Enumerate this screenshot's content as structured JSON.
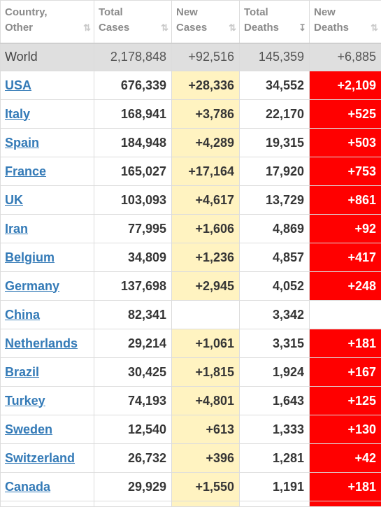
{
  "headers": [
    {
      "label": "Country,\nOther",
      "sort_icon": "sort-both-icon"
    },
    {
      "label": "Total\nCases",
      "sort_icon": "sort-both-icon"
    },
    {
      "label": "New\nCases",
      "sort_icon": "sort-both-icon"
    },
    {
      "label": "Total\nDeaths",
      "sort_icon": "sort-desc-icon"
    },
    {
      "label": "New\nDeaths",
      "sort_icon": "sort-both-icon"
    }
  ],
  "world": {
    "country": "World",
    "total_cases": "2,178,848",
    "new_cases": "+92,516",
    "total_deaths": "145,359",
    "new_deaths": "+6,885"
  },
  "rows": [
    {
      "country": "USA",
      "total_cases": "676,339",
      "new_cases": "+28,336",
      "total_deaths": "34,552",
      "new_deaths": "+2,109"
    },
    {
      "country": "Italy",
      "total_cases": "168,941",
      "new_cases": "+3,786",
      "total_deaths": "22,170",
      "new_deaths": "+525"
    },
    {
      "country": "Spain",
      "total_cases": "184,948",
      "new_cases": "+4,289",
      "total_deaths": "19,315",
      "new_deaths": "+503"
    },
    {
      "country": "France",
      "total_cases": "165,027",
      "new_cases": "+17,164",
      "total_deaths": "17,920",
      "new_deaths": "+753"
    },
    {
      "country": "UK",
      "total_cases": "103,093",
      "new_cases": "+4,617",
      "total_deaths": "13,729",
      "new_deaths": "+861"
    },
    {
      "country": "Iran",
      "total_cases": "77,995",
      "new_cases": "+1,606",
      "total_deaths": "4,869",
      "new_deaths": "+92"
    },
    {
      "country": "Belgium",
      "total_cases": "34,809",
      "new_cases": "+1,236",
      "total_deaths": "4,857",
      "new_deaths": "+417"
    },
    {
      "country": "Germany",
      "total_cases": "137,698",
      "new_cases": "+2,945",
      "total_deaths": "4,052",
      "new_deaths": "+248"
    },
    {
      "country": "China",
      "total_cases": "82,341",
      "new_cases": "",
      "total_deaths": "3,342",
      "new_deaths": ""
    },
    {
      "country": "Netherlands",
      "total_cases": "29,214",
      "new_cases": "+1,061",
      "total_deaths": "3,315",
      "new_deaths": "+181"
    },
    {
      "country": "Brazil",
      "total_cases": "30,425",
      "new_cases": "+1,815",
      "total_deaths": "1,924",
      "new_deaths": "+167"
    },
    {
      "country": "Turkey",
      "total_cases": "74,193",
      "new_cases": "+4,801",
      "total_deaths": "1,643",
      "new_deaths": "+125"
    },
    {
      "country": "Sweden",
      "total_cases": "12,540",
      "new_cases": "+613",
      "total_deaths": "1,333",
      "new_deaths": "+130"
    },
    {
      "country": "Switzerland",
      "total_cases": "26,732",
      "new_cases": "+396",
      "total_deaths": "1,281",
      "new_deaths": "+42"
    },
    {
      "country": "Canada",
      "total_cases": "29,929",
      "new_cases": "+1,550",
      "total_deaths": "1,191",
      "new_deaths": "+181"
    }
  ],
  "colors": {
    "new_cases_bg": "#fff3c1",
    "new_deaths_bg": "#ff0000",
    "link": "#337ab7",
    "world_bg": "#dfdfdf"
  }
}
